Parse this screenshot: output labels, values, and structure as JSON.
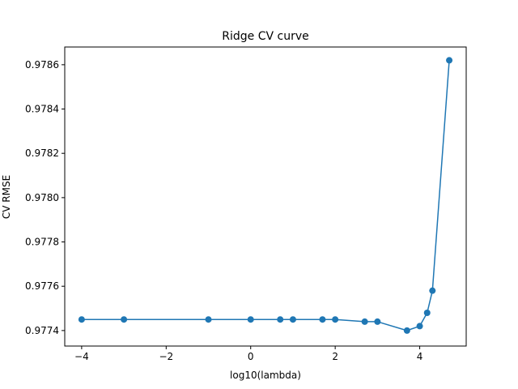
{
  "chart_data": {
    "type": "line",
    "title": "Ridge CV curve",
    "xlabel": "log10(lambda)",
    "ylabel": "CV RMSE",
    "xlim": [
      -4.4,
      5.1
    ],
    "ylim": [
      0.97733,
      0.97868
    ],
    "x_ticks": [
      -4,
      -2,
      0,
      2,
      4
    ],
    "x_tick_labels": [
      "−4",
      "−2",
      "0",
      "2",
      "4"
    ],
    "y_ticks": [
      0.9774,
      0.9776,
      0.9778,
      0.978,
      0.9782,
      0.9784,
      0.9786
    ],
    "y_tick_labels": [
      "0.9774",
      "0.9776",
      "0.9778",
      "0.9780",
      "0.9782",
      "0.9784",
      "0.9786"
    ],
    "grid": false,
    "series": [
      {
        "color": "#1f77b4",
        "marker": "circle",
        "x": [
          -4,
          -3,
          -1,
          0,
          0.699,
          1,
          1.699,
          2,
          2.699,
          3,
          3.699,
          4,
          4.176,
          4.301,
          4.699
        ],
        "y": [
          0.97745,
          0.97745,
          0.97745,
          0.97745,
          0.97745,
          0.97745,
          0.97745,
          0.97745,
          0.97744,
          0.97744,
          0.9774,
          0.97742,
          0.97748,
          0.97758,
          0.97862
        ]
      }
    ]
  }
}
